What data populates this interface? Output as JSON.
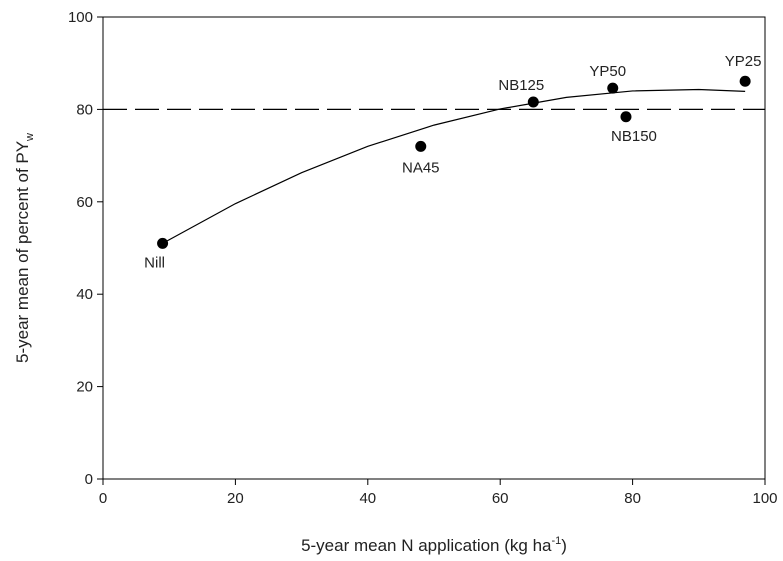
{
  "chart_data": {
    "type": "scatter",
    "x_label": {
      "text": "5-year mean N application (kg ha",
      "sup": "-1",
      "end": ")"
    },
    "y_label": {
      "text": "5-year mean of percent of PY",
      "sub": "w"
    },
    "series": [
      {
        "color": "#000000",
        "labels": [
          "Nill",
          "NA45",
          "NB125",
          "YP50",
          "NB150",
          "YP25"
        ],
        "x": [
          9,
          48,
          65,
          77,
          79,
          97
        ],
        "values": [
          51,
          72,
          81.6,
          84.6,
          78.4,
          86.1
        ]
      }
    ],
    "fit": {
      "color": "#000000",
      "x": [
        9,
        20,
        30,
        40,
        50,
        60,
        70,
        80,
        90,
        97
      ],
      "values": [
        51.0,
        59.6,
        66.3,
        72.0,
        76.6,
        80.1,
        82.6,
        84.0,
        84.3,
        83.9
      ]
    },
    "reference_line": 80,
    "xlim": [
      0,
      100
    ],
    "xticks": [
      0,
      20,
      40,
      60,
      80,
      100
    ],
    "ylim": [
      0,
      100
    ],
    "yticks": [
      0,
      20,
      40,
      60,
      80,
      100
    ]
  }
}
